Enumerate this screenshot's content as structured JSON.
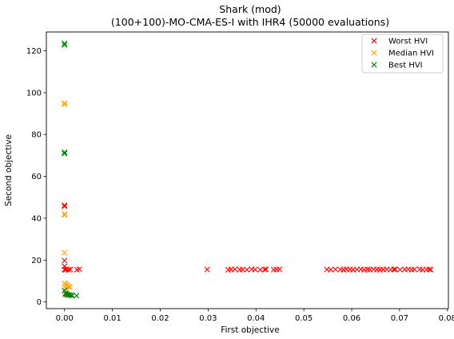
{
  "chart_data": {
    "type": "scatter",
    "title": "Shark (mod)",
    "subtitle": "(100+100)-MO-CMA-ES-I with IHR4 (50000 evaluations)",
    "xlabel": "First objective",
    "ylabel": "Second objective",
    "xlim": [
      -0.0038,
      0.0802
    ],
    "ylim": [
      -3.2,
      129.0
    ],
    "x_ticks": [
      0.0,
      0.01,
      0.02,
      0.03,
      0.04,
      0.05,
      0.06,
      0.07,
      0.08
    ],
    "x_tick_labels": [
      "0.00",
      "0.01",
      "0.02",
      "0.03",
      "0.04",
      "0.05",
      "0.06",
      "0.07",
      "0.08"
    ],
    "y_ticks": [
      0,
      20,
      40,
      60,
      80,
      100,
      120
    ],
    "y_tick_labels": [
      "0",
      "20",
      "40",
      "60",
      "80",
      "100",
      "120"
    ],
    "grid": false,
    "legend_position": "top-right",
    "marker": "x",
    "series": [
      {
        "name": "Worst HVI",
        "color": "#ff0000",
        "points": [
          [
            0.0,
            46.2
          ],
          [
            0.0,
            45.7
          ],
          [
            0.0,
            19.8
          ],
          [
            0.0,
            17.0
          ],
          [
            0.0,
            15.5
          ],
          [
            0.0002,
            15.3
          ],
          [
            0.0004,
            15.6
          ],
          [
            0.0008,
            15.4
          ],
          [
            0.0012,
            15.5
          ],
          [
            0.0026,
            15.4
          ],
          [
            0.0031,
            15.6
          ],
          [
            0.0298,
            15.5
          ],
          [
            0.0342,
            15.4
          ],
          [
            0.0348,
            15.5
          ],
          [
            0.0356,
            15.6
          ],
          [
            0.0366,
            15.4
          ],
          [
            0.0372,
            15.5
          ],
          [
            0.0381,
            15.4
          ],
          [
            0.0391,
            15.6
          ],
          [
            0.0398,
            15.5
          ],
          [
            0.0409,
            15.4
          ],
          [
            0.0418,
            15.5
          ],
          [
            0.0421,
            15.6
          ],
          [
            0.0437,
            15.4
          ],
          [
            0.0443,
            15.5
          ],
          [
            0.0449,
            15.6
          ],
          [
            0.0548,
            15.5
          ],
          [
            0.0556,
            15.4
          ],
          [
            0.0566,
            15.6
          ],
          [
            0.0576,
            15.5
          ],
          [
            0.0583,
            15.4
          ],
          [
            0.0589,
            15.6
          ],
          [
            0.0596,
            15.5
          ],
          [
            0.0603,
            15.4
          ],
          [
            0.0611,
            15.5
          ],
          [
            0.0619,
            15.6
          ],
          [
            0.0626,
            15.4
          ],
          [
            0.0633,
            15.5
          ],
          [
            0.0638,
            15.4
          ],
          [
            0.0646,
            15.6
          ],
          [
            0.0653,
            15.5
          ],
          [
            0.0659,
            15.4
          ],
          [
            0.0666,
            15.5
          ],
          [
            0.0673,
            15.6
          ],
          [
            0.0681,
            15.4
          ],
          [
            0.0688,
            15.5
          ],
          [
            0.0691,
            15.6
          ],
          [
            0.0701,
            15.4
          ],
          [
            0.0711,
            15.5
          ],
          [
            0.0718,
            15.6
          ],
          [
            0.0725,
            15.4
          ],
          [
            0.0731,
            15.5
          ],
          [
            0.0742,
            15.6
          ],
          [
            0.0748,
            15.4
          ],
          [
            0.0756,
            15.5
          ],
          [
            0.0762,
            15.6
          ],
          [
            0.0765,
            15.4
          ]
        ]
      },
      {
        "name": "Median HVI",
        "color": "#ffa500",
        "points": [
          [
            0.0,
            95.0
          ],
          [
            0.0,
            94.5
          ],
          [
            0.0,
            42.0
          ],
          [
            0.0,
            41.5
          ],
          [
            0.0,
            23.5
          ],
          [
            0.0,
            9.0
          ],
          [
            0.0002,
            8.5
          ],
          [
            0.0004,
            8.0
          ],
          [
            0.0006,
            7.6
          ],
          [
            0.0009,
            7.3
          ],
          [
            0.0011,
            7.0
          ],
          [
            0.0002,
            6.4
          ],
          [
            0.0001,
            3.4
          ]
        ]
      },
      {
        "name": "Best HVI",
        "color": "#008000",
        "points": [
          [
            0.0,
            123.5
          ],
          [
            0.0,
            122.8
          ],
          [
            0.0,
            71.5
          ],
          [
            0.0,
            70.9
          ],
          [
            0.0,
            5.5
          ],
          [
            0.0002,
            4.2
          ],
          [
            0.0003,
            3.9
          ],
          [
            0.0005,
            3.6
          ],
          [
            0.0007,
            3.4
          ],
          [
            0.001,
            3.3
          ],
          [
            0.0013,
            3.2
          ],
          [
            0.0016,
            3.1
          ],
          [
            0.0025,
            3.0
          ]
        ]
      }
    ]
  }
}
